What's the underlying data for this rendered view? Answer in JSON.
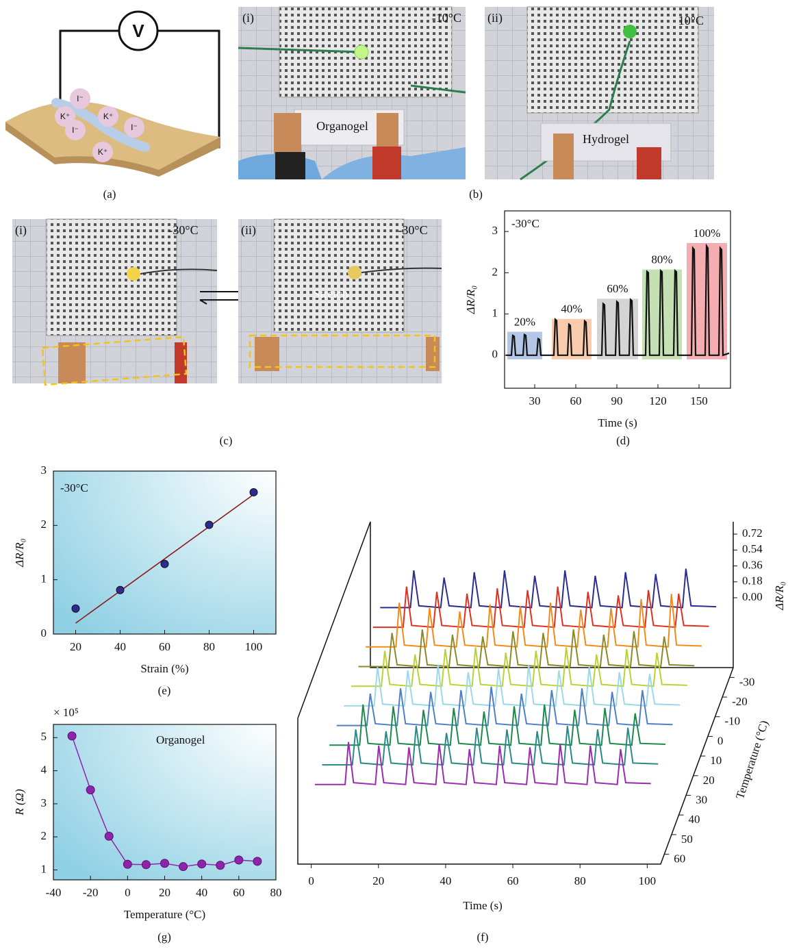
{
  "panel_labels": {
    "a": "(a)",
    "b": "(b)",
    "c": "(c)",
    "d": "(d)",
    "e": "(e)",
    "f": "(f)",
    "g": "(g)"
  },
  "panel_a": {
    "meter": "V",
    "ions": [
      "I⁻",
      "K⁺",
      "K⁺",
      "I⁻",
      "I⁻",
      "K⁺"
    ]
  },
  "panel_b": [
    {
      "label": "(i)",
      "temperature": "-10°C",
      "material": "Organogel"
    },
    {
      "label": "(ii)",
      "temperature": "10°C",
      "material": "Hydrogel"
    }
  ],
  "panel_c": [
    {
      "label": "(i)",
      "temperature": "-30°C"
    },
    {
      "label": "(ii)",
      "temperature": "-30°C",
      "action": "Stretch"
    }
  ],
  "chart_data": [
    {
      "type": "line",
      "x_label": "Time (s)",
      "y_label": "ΔR/R₀",
      "condition": "-30°C",
      "color": "#111111",
      "xlim": [
        8,
        173
      ],
      "xticks": [
        30,
        60,
        90,
        120,
        150
      ],
      "ylim": [
        -0.8,
        3.5
      ],
      "yticks": [
        0,
        1,
        2,
        3
      ],
      "annotations": [
        {
          "text": "20%",
          "x0": 10,
          "x1": 35.5,
          "y0": -0.1,
          "y1": 0.57,
          "color": "#b4c7e7"
        },
        {
          "text": "40%",
          "x0": 42.5,
          "x1": 71.5,
          "y0": -0.1,
          "y1": 0.88,
          "color": "#f8cbad"
        },
        {
          "text": "60%",
          "x0": 75.5,
          "x1": 105.5,
          "y0": -0.1,
          "y1": 1.37,
          "color": "#d4d4d4"
        },
        {
          "text": "80%",
          "x0": 108.5,
          "x1": 137.5,
          "y0": -0.1,
          "y1": 2.08,
          "color": "#c5e0b4"
        },
        {
          "text": "100%",
          "x0": 141,
          "x1": 170.5,
          "y0": -0.1,
          "y1": 2.72,
          "color": "#f4aeb2"
        }
      ],
      "x": [
        9,
        13,
        14,
        15,
        16,
        21.5,
        22.5,
        23.5,
        24.5,
        31.5,
        32.5,
        33.5,
        34.5,
        44,
        45,
        46,
        47,
        54,
        55,
        56,
        57,
        65.5,
        66.5,
        67.5,
        68.5,
        79,
        80,
        81,
        82,
        89,
        90,
        91,
        92,
        99,
        100,
        101,
        102,
        111,
        112,
        113,
        114,
        121,
        122,
        123,
        124,
        131.5,
        132.5,
        133.5,
        134.5,
        144.5,
        145.5,
        146.5,
        147.5,
        154.5,
        155.5,
        156.5,
        157.5,
        164.5,
        165.5,
        166.5,
        167.5,
        172
      ],
      "values": [
        0,
        0,
        0.48,
        0.46,
        0,
        0,
        0.5,
        0.48,
        0,
        0,
        0.4,
        0.38,
        0,
        0,
        0.87,
        0.84,
        0,
        0,
        0.75,
        0.72,
        0,
        0,
        0.83,
        0.8,
        0,
        0,
        1.25,
        1.22,
        0,
        0,
        1.3,
        1.27,
        0,
        0,
        1.35,
        1.32,
        0,
        0,
        2.03,
        2.0,
        0,
        0,
        2.05,
        2.02,
        0,
        0,
        2.05,
        2.02,
        0,
        0,
        2.6,
        2.56,
        0,
        0,
        2.65,
        2.6,
        0,
        0,
        2.6,
        2.56,
        0,
        0.05
      ]
    },
    {
      "type": "scatter",
      "x_label": "Strain (%)",
      "y_label": "ΔR/R₀",
      "condition": "-30°C",
      "color": "#2e2a8f",
      "x": [
        20,
        40,
        60,
        80,
        100
      ],
      "values": [
        0.47,
        0.81,
        1.29,
        2.01,
        2.61
      ],
      "errors": [
        0.05,
        0.03,
        0.04,
        0.03,
        0.04
      ],
      "fit": {
        "color": "#8b1a1a",
        "x": [
          20,
          100
        ],
        "values": [
          0.2,
          2.57
        ]
      },
      "xlim": [
        10,
        110
      ],
      "xticks": [
        20,
        40,
        60,
        80,
        100
      ],
      "ylim": [
        0,
        3
      ],
      "yticks": [
        0,
        1,
        2,
        3
      ],
      "background": true
    },
    {
      "type": "line",
      "markers": true,
      "x_label": "Temperature (°C)",
      "y_label": "R (Ω)",
      "y_multiplier": "× 10⁵",
      "condition": "Organogel",
      "color": "#8e24aa",
      "x": [
        -30,
        -20,
        -10,
        0,
        10,
        20,
        30,
        40,
        50,
        60,
        70
      ],
      "values": [
        5.05,
        3.42,
        2.02,
        1.17,
        1.16,
        1.2,
        1.1,
        1.18,
        1.14,
        1.3,
        1.26
      ],
      "xlim": [
        -40,
        80
      ],
      "xticks": [
        -40,
        -20,
        0,
        20,
        40,
        60,
        80
      ],
      "ylim": [
        0.7,
        5.4
      ],
      "yticks": [
        1,
        2,
        3,
        4,
        5
      ],
      "background": true
    },
    {
      "type": "waterfall",
      "x_label": "Time (s)",
      "y_label": "Temperature (°C)",
      "z_label": "ΔR/R₀",
      "xlim": [
        -4,
        104
      ],
      "xticks": [
        0,
        20,
        40,
        60,
        80,
        100
      ],
      "ylim": [
        -35,
        65
      ],
      "yticks": [
        -30,
        -20,
        -10,
        0,
        10,
        20,
        30,
        40,
        50,
        60
      ],
      "zlim": [
        -0.79,
        0.86
      ],
      "zticks": [
        {
          "value": 0,
          "label": "0.00"
        },
        0.18,
        0.36,
        0.54,
        0.72
      ],
      "x": [
        0,
        9,
        10,
        11.5,
        18,
        19,
        20.5,
        27,
        28,
        29.5,
        36,
        37,
        38.5,
        45,
        46,
        47.5,
        54,
        55,
        56.5,
        63,
        64,
        65.5,
        72,
        73,
        74.5,
        81,
        82,
        83.5,
        90,
        91,
        92.5,
        100
      ],
      "series": [
        {
          "color": "#2b2d8f",
          "values": [
            0,
            0,
            0.42,
            0.02,
            0,
            0.34,
            0.02,
            0,
            0.4,
            0.02,
            0,
            0.42,
            0.02,
            0,
            0.36,
            0.02,
            0,
            0.42,
            0.02,
            0,
            0.36,
            0.02,
            0,
            0.4,
            0.02,
            0,
            0.38,
            0.02,
            0,
            0.44,
            0.02,
            0.01
          ]
        },
        {
          "color": "#e0301e",
          "values": [
            0,
            0,
            0.46,
            0.02,
            0,
            0.4,
            0.02,
            0,
            0.38,
            0.02,
            0,
            0.44,
            0.02,
            0,
            0.42,
            0.02,
            0,
            0.46,
            0.02,
            0,
            0.4,
            0.02,
            0,
            0.36,
            0.02,
            0,
            0.42,
            0.02,
            0,
            0.38,
            0.02,
            0.01
          ]
        },
        {
          "color": "#f28a1a",
          "values": [
            0,
            0,
            0.5,
            0.02,
            0,
            0.44,
            0.02,
            0,
            0.4,
            0.02,
            0,
            0.48,
            0.02,
            0,
            0.46,
            0.02,
            0,
            0.5,
            0.02,
            0,
            0.42,
            0.02,
            0,
            0.44,
            0.02,
            0,
            0.54,
            0.02,
            0,
            0.6,
            0.02,
            0.01
          ]
        },
        {
          "color": "#8a8a2a",
          "values": [
            0,
            0,
            0.38,
            0.02,
            0,
            0.42,
            0.02,
            0,
            0.36,
            0.02,
            0,
            0.34,
            0.02,
            0,
            0.4,
            0.02,
            0,
            0.38,
            0.02,
            0,
            0.42,
            0.02,
            0,
            0.36,
            0.02,
            0,
            0.4,
            0.02,
            0,
            0.34,
            0.02,
            0.01
          ]
        },
        {
          "color": "#b7d433",
          "values": [
            0,
            0,
            0.4,
            0.02,
            0,
            0.36,
            0.02,
            0,
            0.42,
            0.02,
            0,
            0.44,
            0.02,
            0,
            0.38,
            0.02,
            0,
            0.4,
            0.02,
            0,
            0.44,
            0.02,
            0,
            0.36,
            0.02,
            0,
            0.42,
            0.02,
            0,
            0.38,
            0.02,
            0.01
          ]
        },
        {
          "color": "#9ad9e8",
          "values": [
            0,
            0,
            0.44,
            0.02,
            0,
            0.4,
            0.02,
            0,
            0.46,
            0.02,
            0,
            0.38,
            0.02,
            0,
            0.42,
            0.02,
            0,
            0.46,
            0.02,
            0,
            0.4,
            0.02,
            0,
            0.44,
            0.02,
            0,
            0.38,
            0.02,
            0,
            0.36,
            0.02,
            0.01
          ]
        },
        {
          "color": "#4f7fc4",
          "values": [
            0,
            0,
            0.36,
            0.02,
            0,
            0.42,
            0.02,
            0,
            0.38,
            0.02,
            0,
            0.4,
            0.02,
            0,
            0.44,
            0.02,
            0,
            0.36,
            0.02,
            0,
            0.4,
            0.02,
            0,
            0.42,
            0.02,
            0,
            0.38,
            0.02,
            0,
            0.4,
            0.02,
            0.01
          ]
        },
        {
          "color": "#1a8a4a",
          "values": [
            0,
            0,
            0.46,
            0.02,
            0,
            0.44,
            0.02,
            0,
            0.4,
            0.02,
            0,
            0.42,
            0.02,
            0,
            0.38,
            0.02,
            0,
            0.44,
            0.02,
            0,
            0.46,
            0.02,
            0,
            0.4,
            0.02,
            0,
            0.42,
            0.02,
            0,
            0.36,
            0.02,
            0.01
          ]
        },
        {
          "color": "#2a8a8a",
          "values": [
            0,
            0,
            0.4,
            0.02,
            0,
            0.38,
            0.02,
            0,
            0.44,
            0.02,
            0,
            0.36,
            0.02,
            0,
            0.42,
            0.02,
            0,
            0.4,
            0.02,
            0,
            0.38,
            0.02,
            0,
            0.44,
            0.02,
            0,
            0.4,
            0.02,
            0,
            0.42,
            0.02,
            0.01
          ]
        },
        {
          "color": "#9a2ab0",
          "values": [
            0,
            0,
            0.48,
            0.02,
            0,
            0.44,
            0.02,
            0,
            0.42,
            0.02,
            0,
            0.46,
            0.02,
            0,
            0.4,
            0.02,
            0,
            0.44,
            0.02,
            0,
            0.42,
            0.02,
            0,
            0.46,
            0.02,
            0,
            0.44,
            0.02,
            0,
            0.4,
            0.02,
            0.01
          ]
        }
      ]
    }
  ]
}
